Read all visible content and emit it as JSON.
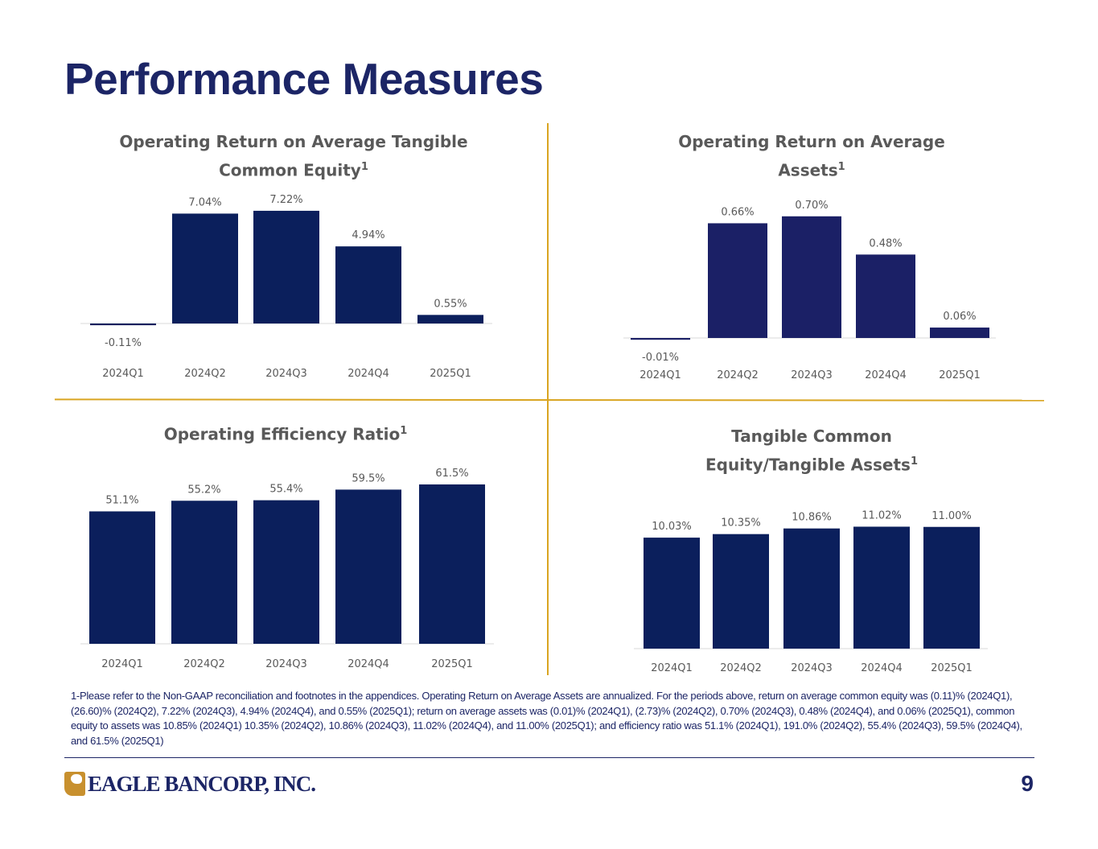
{
  "page": {
    "title": "Performance Measures",
    "page_number": "9",
    "logo_text": "EAGLE BANCORP, INC.",
    "footnote": "1-Please refer to the Non-GAAP reconciliation and footnotes in the appendices. Operating Return on Average Assets are annualized. For the periods above, return on average common equity was (0.11)% (2024Q1), (26.60)% (2024Q2), 7.22% (2024Q3), 4.94% (2024Q4), and 0.55% (2025Q1); return on average assets was (0.01)% (2024Q1), (2.73)% (2024Q2), 0.70% (2024Q3), 0.48% (2024Q4), and 0.06% (2025Q1), common equity to assets was 10.85% (2024Q1) 10.35% (2024Q2), 10.86% (2024Q3), 11.02% (2024Q4), and 11.00% (2025Q1); and efficiency ratio was 51.1% (2024Q1), 191.0% (2024Q2), 55.4% (2024Q3), 59.5% (2024Q4), and 61.5% (2025Q1)",
    "colors": {
      "navy": "#0b1f5c",
      "navy_alt": "#1b2066",
      "gold": "#d9a521",
      "gray": "#595959"
    }
  },
  "chart_data": [
    {
      "type": "bar",
      "title": "Operating Return on Average Tangible Common Equity",
      "title_line1": "Operating Return on Average Tangible",
      "title_line2": "Common Equity",
      "footnote_marker": "1",
      "categories": [
        "2024Q1",
        "2024Q2",
        "2024Q3",
        "2024Q4",
        "2025Q1"
      ],
      "values": [
        -0.11,
        7.04,
        7.22,
        4.94,
        0.55
      ],
      "labels": [
        "-0.11%",
        "7.04%",
        "7.22%",
        "4.94%",
        "0.55%"
      ],
      "unit": "%",
      "xlabel": "",
      "ylabel": "",
      "grid": false,
      "legend": "none"
    },
    {
      "type": "bar",
      "title": "Operating Return on Average Assets",
      "title_line1": "Operating Return on Average",
      "title_line2": "Assets",
      "footnote_marker": "1",
      "categories": [
        "2024Q1",
        "2024Q2",
        "2024Q3",
        "2024Q4",
        "2025Q1"
      ],
      "values": [
        -0.01,
        0.66,
        0.7,
        0.48,
        0.06
      ],
      "labels": [
        "-0.01%",
        "0.66%",
        "0.70%",
        "0.48%",
        "0.06%"
      ],
      "unit": "%",
      "xlabel": "",
      "ylabel": "",
      "grid": false,
      "legend": "none"
    },
    {
      "type": "bar",
      "title": "Operating Efficiency Ratio",
      "title_line1": "Operating Efficiency Ratio",
      "title_line2": "",
      "footnote_marker": "1",
      "categories": [
        "2024Q1",
        "2024Q2",
        "2024Q3",
        "2024Q4",
        "2025Q1"
      ],
      "values": [
        51.1,
        55.2,
        55.4,
        59.5,
        61.5
      ],
      "labels": [
        "51.1%",
        "55.2%",
        "55.4%",
        "59.5%",
        "61.5%"
      ],
      "unit": "%",
      "xlabel": "",
      "ylabel": "",
      "grid": false,
      "legend": "none"
    },
    {
      "type": "bar",
      "title": "Tangible Common Equity/Tangible Assets",
      "title_line1": "Tangible Common",
      "title_line2": "Equity/Tangible Assets",
      "footnote_marker": "1",
      "categories": [
        "2024Q1",
        "2024Q2",
        "2024Q3",
        "2024Q4",
        "2025Q1"
      ],
      "values": [
        10.03,
        10.35,
        10.86,
        11.02,
        11.0
      ],
      "labels": [
        "10.03%",
        "10.35%",
        "10.86%",
        "11.02%",
        "11.00%"
      ],
      "unit": "%",
      "xlabel": "",
      "ylabel": "",
      "grid": false,
      "legend": "none"
    }
  ]
}
